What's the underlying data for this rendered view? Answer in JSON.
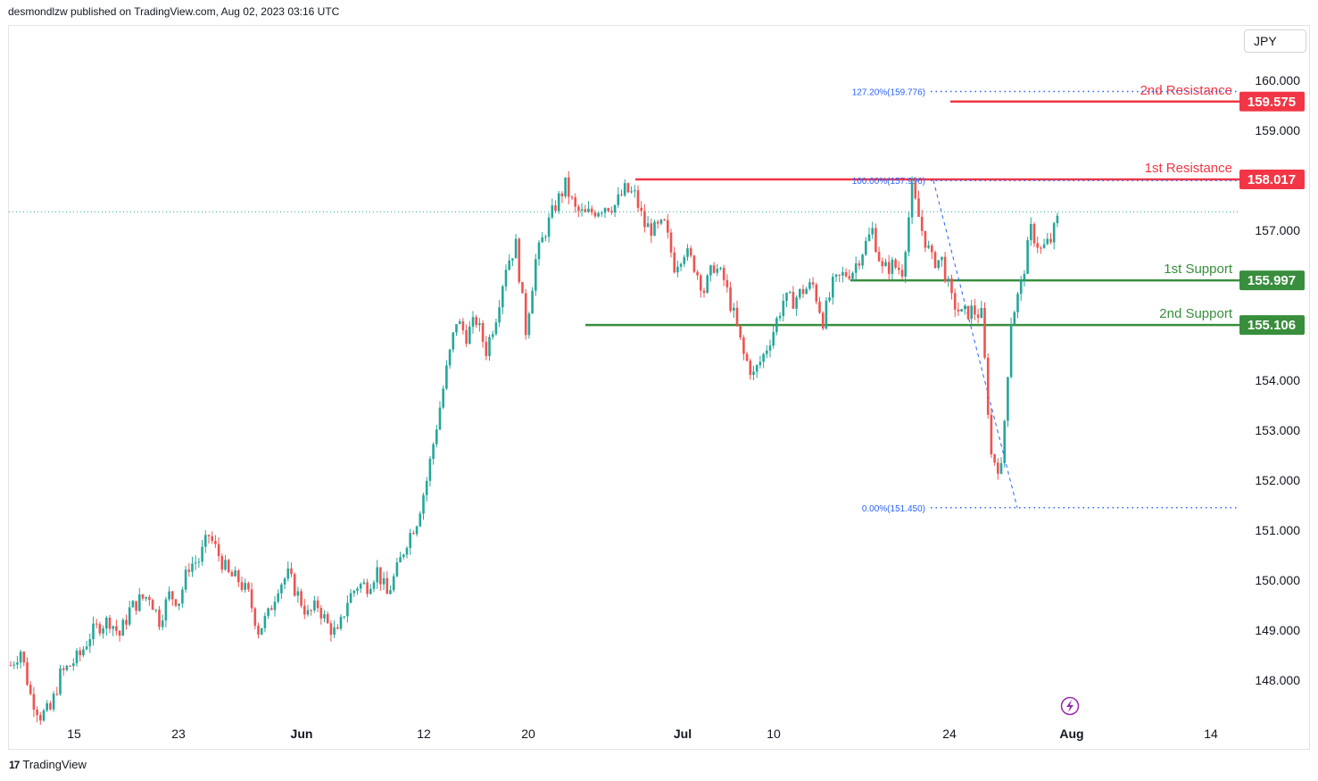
{
  "header": {
    "published": "desmondlzw published on TradingView.com, Aug 02, 2023 03:16 UTC"
  },
  "currency_button": "JPY",
  "footer": {
    "logo": "17",
    "brand": "TradingView"
  },
  "colors": {
    "up": "#26a69a",
    "down": "#ef5350",
    "resistance": "#f23645",
    "support": "#388e3c",
    "fib": "#2962ff"
  },
  "chart_data": {
    "type": "candlestick",
    "symbol_currency": "JPY",
    "ylim": [
      147.3,
      160.6
    ],
    "y_ticks": [
      {
        "value": 160.0,
        "label": "160.000"
      },
      {
        "value": 159.0,
        "label": "159.000"
      },
      {
        "value": 157.0,
        "label": "157.000"
      },
      {
        "value": 156.0,
        "label": "156.000"
      },
      {
        "value": 155.0,
        "label": "155.000"
      },
      {
        "value": 154.0,
        "label": "154.000"
      },
      {
        "value": 153.0,
        "label": "153.000"
      },
      {
        "value": 152.0,
        "label": "152.000"
      },
      {
        "value": 151.0,
        "label": "151.000"
      },
      {
        "value": 150.0,
        "label": "150.000"
      },
      {
        "value": 149.0,
        "label": "149.000"
      },
      {
        "value": 148.0,
        "label": "148.000"
      }
    ],
    "x_ticks": [
      {
        "label": "15",
        "bold": false
      },
      {
        "label": "23",
        "bold": false
      },
      {
        "label": "Jun",
        "bold": true
      },
      {
        "label": "12",
        "bold": false
      },
      {
        "label": "20",
        "bold": false
      },
      {
        "label": "Jul",
        "bold": true
      },
      {
        "label": "10",
        "bold": false
      },
      {
        "label": "24",
        "bold": false
      },
      {
        "label": "Aug",
        "bold": true
      },
      {
        "label": "14",
        "bold": false
      }
    ],
    "levels": [
      {
        "name": "2nd Resistance",
        "value": 159.575,
        "label": "159.575",
        "kind": "resistance"
      },
      {
        "name": "1st Resistance",
        "value": 158.017,
        "label": "158.017",
        "kind": "resistance"
      },
      {
        "name": "1st Support",
        "value": 155.997,
        "label": "155.997",
        "kind": "support"
      },
      {
        "name": "2nd Support",
        "value": 155.106,
        "label": "155.106",
        "kind": "support"
      }
    ],
    "fibonacci": [
      {
        "label": "127.20%(159.776)",
        "value": 159.776
      },
      {
        "label": "100.00%(157.996)",
        "value": 157.996
      },
      {
        "label": "0.00%(151.450)",
        "value": 151.45
      }
    ],
    "last_price": 157.37,
    "price_path": [
      [
        0,
        148.3
      ],
      [
        3,
        148.6
      ],
      [
        6,
        147.7
      ],
      [
        9,
        147.3
      ],
      [
        12,
        147.4
      ],
      [
        15,
        148.1
      ],
      [
        18,
        148.3
      ],
      [
        21,
        148.5
      ],
      [
        24,
        148.9
      ],
      [
        27,
        149.1
      ],
      [
        30,
        149.2
      ],
      [
        33,
        148.9
      ],
      [
        36,
        149.4
      ],
      [
        39,
        149.6
      ],
      [
        42,
        149.7
      ],
      [
        45,
        149.2
      ],
      [
        48,
        149.7
      ],
      [
        51,
        149.6
      ],
      [
        54,
        150.3
      ],
      [
        57,
        150.4
      ],
      [
        60,
        150.9
      ],
      [
        63,
        150.5
      ],
      [
        66,
        150.1
      ],
      [
        69,
        150.0
      ],
      [
        72,
        149.7
      ],
      [
        75,
        149.0
      ],
      [
        78,
        149.3
      ],
      [
        81,
        149.9
      ],
      [
        84,
        150.1
      ],
      [
        87,
        149.7
      ],
      [
        90,
        149.3
      ],
      [
        93,
        149.5
      ],
      [
        96,
        149.1
      ],
      [
        99,
        148.9
      ],
      [
        102,
        149.6
      ],
      [
        105,
        149.9
      ],
      [
        108,
        149.9
      ],
      [
        111,
        150.2
      ],
      [
        114,
        149.7
      ],
      [
        117,
        150.2
      ],
      [
        120,
        150.8
      ],
      [
        123,
        151.2
      ],
      [
        126,
        152.0
      ],
      [
        129,
        153.1
      ],
      [
        132,
        154.2
      ],
      [
        135,
        155.2
      ],
      [
        138,
        154.9
      ],
      [
        141,
        155.2
      ],
      [
        144,
        154.6
      ],
      [
        147,
        155.3
      ],
      [
        150,
        156.3
      ],
      [
        153,
        156.7
      ],
      [
        156,
        155.0
      ],
      [
        159,
        156.4
      ],
      [
        162,
        157.0
      ],
      [
        165,
        157.5
      ],
      [
        168,
        157.9
      ],
      [
        171,
        157.4
      ],
      [
        174,
        157.3
      ],
      [
        177,
        157.4
      ],
      [
        180,
        157.5
      ],
      [
        183,
        157.5
      ],
      [
        186,
        157.8
      ],
      [
        189,
        157.7
      ],
      [
        192,
        157.1
      ],
      [
        195,
        157.0
      ],
      [
        198,
        157.1
      ],
      [
        201,
        156.3
      ],
      [
        204,
        156.6
      ],
      [
        207,
        156.3
      ],
      [
        210,
        155.8
      ],
      [
        213,
        156.3
      ],
      [
        216,
        156.0
      ],
      [
        219,
        155.3
      ],
      [
        222,
        154.5
      ],
      [
        225,
        154.1
      ],
      [
        228,
        154.5
      ],
      [
        231,
        155.0
      ],
      [
        234,
        155.6
      ],
      [
        237,
        155.6
      ],
      [
        240,
        155.8
      ],
      [
        243,
        155.9
      ],
      [
        246,
        155.2
      ],
      [
        249,
        155.9
      ],
      [
        252,
        156.1
      ],
      [
        255,
        156.2
      ],
      [
        258,
        156.6
      ],
      [
        261,
        157.0
      ],
      [
        264,
        156.2
      ],
      [
        267,
        156.3
      ],
      [
        270,
        156.2
      ],
      [
        273,
        157.8
      ],
      [
        276,
        157.0
      ],
      [
        279,
        156.4
      ],
      [
        282,
        156.4
      ],
      [
        285,
        155.6
      ],
      [
        288,
        155.3
      ],
      [
        291,
        155.4
      ],
      [
        294,
        155.3
      ],
      [
        297,
        152.5
      ],
      [
        300,
        152.2
      ],
      [
        303,
        155.2
      ],
      [
        306,
        155.9
      ],
      [
        309,
        157.0
      ],
      [
        312,
        156.6
      ],
      [
        315,
        156.8
      ],
      [
        318,
        157.4
      ]
    ]
  }
}
